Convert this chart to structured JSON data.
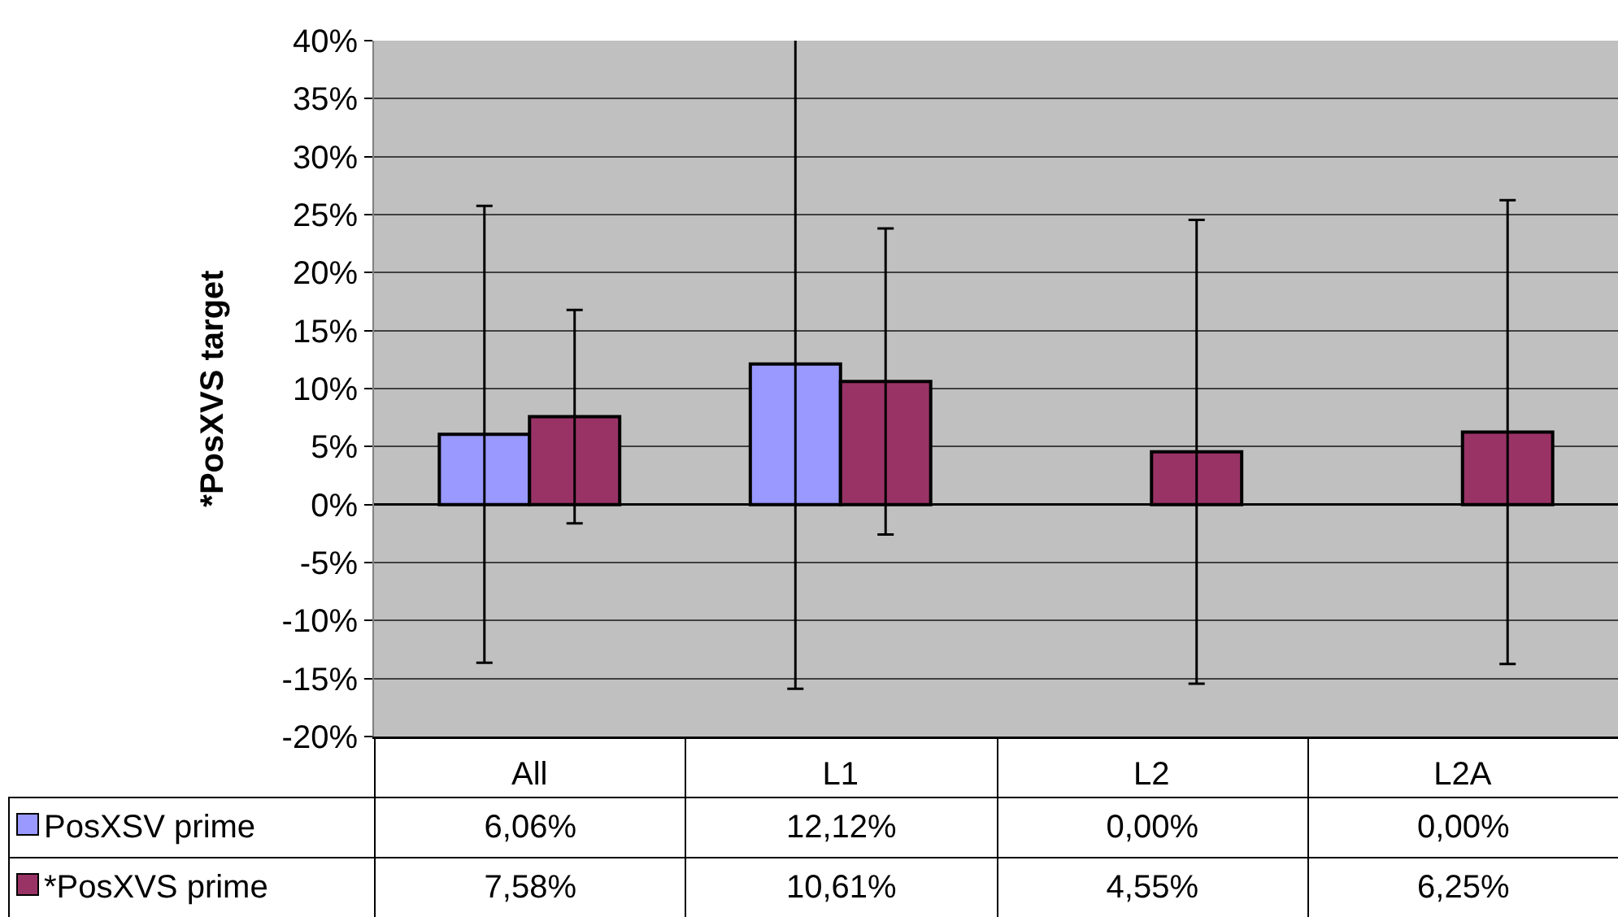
{
  "chart_data": {
    "type": "bar",
    "ylabel": "*PosXVS target",
    "categories": [
      "All",
      "L1",
      "L2",
      "L2A"
    ],
    "series": [
      {
        "name": "PosXSV prime",
        "color": "#9999ff",
        "values": [
          6.06,
          12.12,
          0,
          0
        ],
        "errors": [
          19.7,
          28,
          null,
          null
        ],
        "value_labels": [
          "6,06%",
          "12,12%",
          "0,00%",
          "0,00%"
        ]
      },
      {
        "name": "*PosXVS prime",
        "color": "#993366",
        "values": [
          7.58,
          10.61,
          4.55,
          6.25
        ],
        "errors": [
          9.2,
          13.2,
          20,
          20
        ],
        "value_labels": [
          "7,58%",
          "10,61%",
          "4,55%",
          "6,25%"
        ]
      }
    ],
    "ylim": [
      -20,
      40
    ],
    "yticks": [
      {
        "value": -20,
        "label": "-20%"
      },
      {
        "value": -15,
        "label": "-15%"
      },
      {
        "value": -10,
        "label": "-10%"
      },
      {
        "value": -5,
        "label": "-5%"
      },
      {
        "value": 0,
        "label": "0%"
      },
      {
        "value": 5,
        "label": "5%"
      },
      {
        "value": 10,
        "label": "10%"
      },
      {
        "value": 15,
        "label": "15%"
      },
      {
        "value": 20,
        "label": "20%"
      },
      {
        "value": 25,
        "label": "25%"
      },
      {
        "value": 30,
        "label": "30%"
      },
      {
        "value": 35,
        "label": "35%"
      },
      {
        "value": 40,
        "label": "40%"
      }
    ],
    "grid": "y",
    "legend": "bottom"
  }
}
